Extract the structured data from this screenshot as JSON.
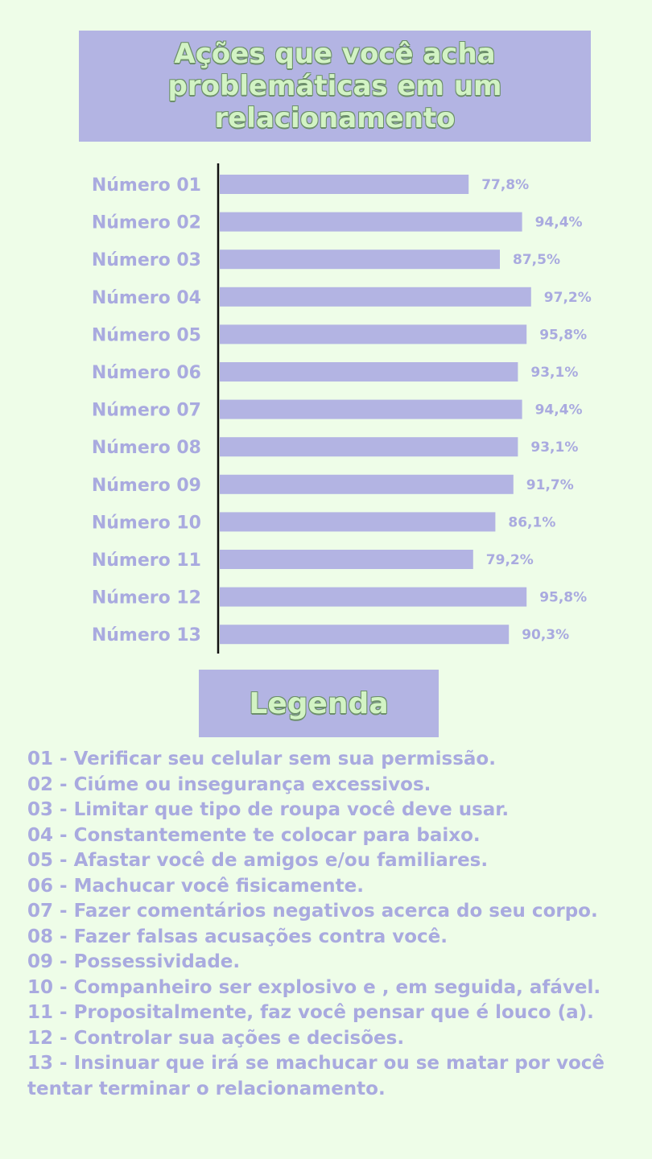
{
  "chart_data": {
    "type": "bar",
    "orientation": "horizontal",
    "title": "Ações que você acha problemáticas em um relacionamento",
    "categories": [
      "Número 01",
      "Número 02",
      "Número 03",
      "Número 04",
      "Número 05",
      "Número 06",
      "Número 07",
      "Número 08",
      "Número 09",
      "Número 10",
      "Número 11",
      "Número 12",
      "Número 13"
    ],
    "values": [
      77.8,
      94.4,
      87.5,
      97.2,
      95.8,
      93.1,
      94.4,
      93.1,
      91.7,
      86.1,
      79.2,
      95.8,
      90.3
    ],
    "value_labels": [
      "77,8%",
      "94,4%",
      "87,5%",
      "97,2%",
      "95,8%",
      "93,1%",
      "94,4%",
      "93,1%",
      "91,7%",
      "86,1%",
      "79,2%",
      "95,8%",
      "90,3%"
    ],
    "xlim": [
      0,
      100
    ],
    "grid": false,
    "bar_color": "#b3b4e3"
  },
  "legend": {
    "title": "Legenda",
    "items": [
      "01 - Verificar seu celular sem sua permissão.",
      "02 - Ciúme ou insegurança excessivos.",
      "03 - Limitar que tipo de roupa você deve usar.",
      "04 - Constantemente te colocar para baixo.",
      "05 - Afastar você de amigos e/ou familiares.",
      "06 - Machucar você fisicamente.",
      "07 - Fazer comentários negativos acerca do seu corpo.",
      "08 - Fazer falsas acusações contra você.",
      "09 - Possessividade.",
      "10 - Companheiro ser explosivo e , em seguida, afável.",
      "11 - Propositalmente, faz você pensar que é louco (a).",
      "12 - Controlar sua ações e decisões.",
      "13 - Insinuar que irá se machucar ou se matar por você tentar terminar o relacionamento."
    ]
  },
  "colors": {
    "background": "#eefde8",
    "accent": "#b3b4e3",
    "title_text": "#d2f3c4",
    "label_text": "#a9aadf"
  }
}
